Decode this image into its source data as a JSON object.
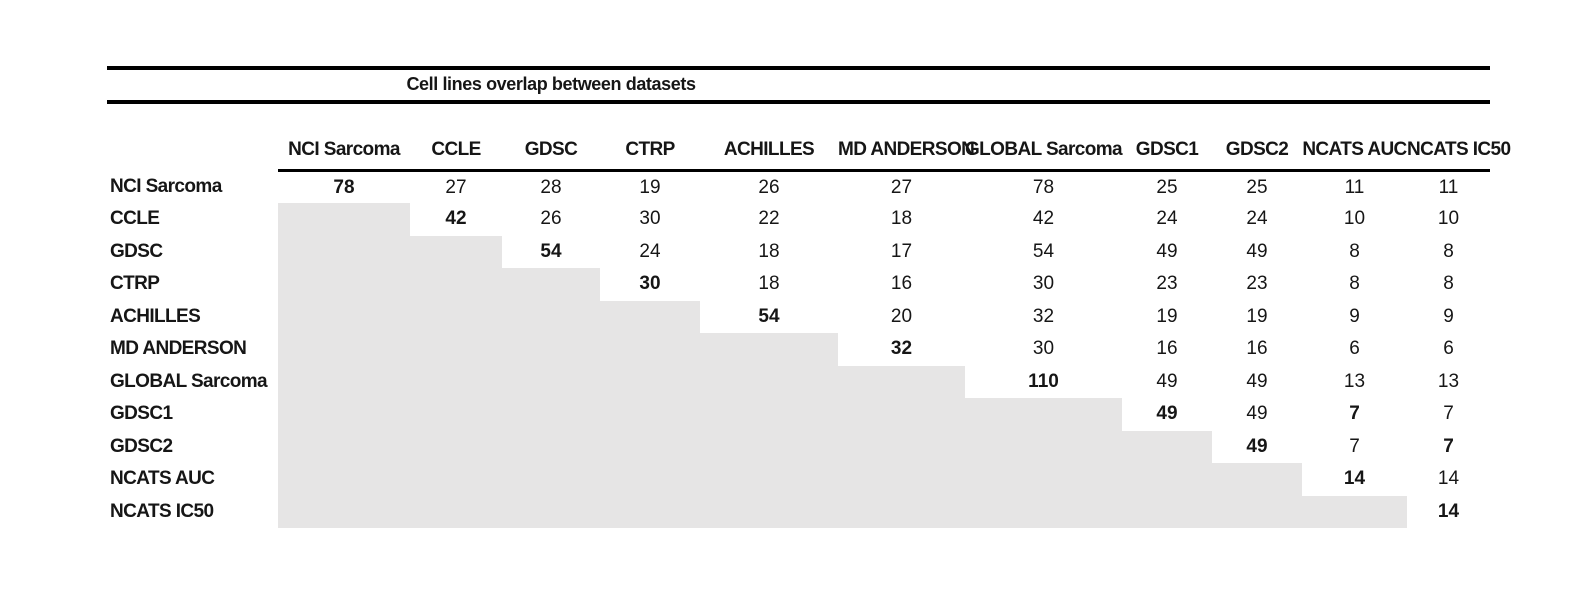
{
  "title": "Cell lines overlap between datasets",
  "colors": {
    "shade": "#e6e5e5",
    "rule": "#000000",
    "text": "#161616"
  },
  "chart_data": {
    "type": "table",
    "title": "Cell lines overlap between datasets",
    "description": "Symmetric overlap matrix; only upper triangle shows counts, lower triangle is shaded gray, diagonal values are bold dataset sizes",
    "row_labels": [
      "NCI Sarcoma",
      "CCLE",
      "GDSC",
      "CTRP",
      "ACHILLES",
      "MD ANDERSON",
      "GLOBAL Sarcoma",
      "GDSC1",
      "GDSC2",
      "NCATS AUC",
      "NCATS IC50"
    ],
    "column_labels": [
      "NCI Sarcoma",
      "CCLE",
      "GDSC",
      "CTRP",
      "ACHILLES",
      "MD ANDERSON",
      "GLOBAL Sarcoma",
      "GDSC1",
      "GDSC2",
      "NCATS AUC",
      "NCATS IC50"
    ],
    "matrix": [
      [
        78,
        27,
        28,
        19,
        26,
        27,
        78,
        25,
        25,
        11,
        11
      ],
      [
        null,
        42,
        26,
        30,
        22,
        18,
        42,
        24,
        24,
        10,
        10
      ],
      [
        null,
        null,
        54,
        24,
        18,
        17,
        54,
        49,
        49,
        8,
        8
      ],
      [
        null,
        null,
        null,
        30,
        18,
        16,
        30,
        23,
        23,
        8,
        8
      ],
      [
        null,
        null,
        null,
        null,
        54,
        20,
        32,
        19,
        19,
        9,
        9
      ],
      [
        null,
        null,
        null,
        null,
        null,
        32,
        30,
        16,
        16,
        6,
        6
      ],
      [
        null,
        null,
        null,
        null,
        null,
        null,
        110,
        49,
        49,
        13,
        13
      ],
      [
        null,
        null,
        null,
        null,
        null,
        null,
        null,
        49,
        49,
        7,
        7
      ],
      [
        null,
        null,
        null,
        null,
        null,
        null,
        null,
        null,
        49,
        7,
        7
      ],
      [
        null,
        null,
        null,
        null,
        null,
        null,
        null,
        null,
        null,
        14,
        14
      ],
      [
        null,
        null,
        null,
        null,
        null,
        null,
        null,
        null,
        null,
        null,
        14
      ]
    ],
    "bold_cells": [
      [
        0,
        0
      ],
      [
        1,
        1
      ],
      [
        2,
        2
      ],
      [
        3,
        3
      ],
      [
        4,
        4
      ],
      [
        5,
        5
      ],
      [
        6,
        6
      ],
      [
        7,
        7
      ],
      [
        8,
        8
      ],
      [
        9,
        9
      ],
      [
        10,
        10
      ],
      [
        7,
        9
      ],
      [
        8,
        10
      ]
    ],
    "shaded_region": "lower-triangle",
    "legend_position": "none",
    "grid": false
  }
}
